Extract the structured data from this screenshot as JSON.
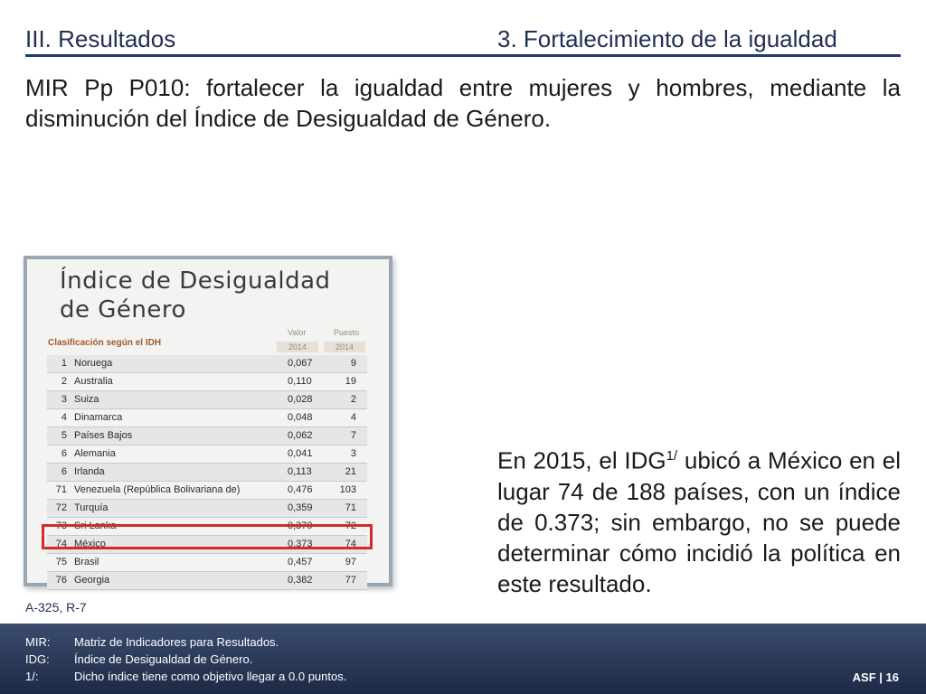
{
  "header": {
    "section": "III. Resultados",
    "topic": "3. Fortalecimiento de la igualdad"
  },
  "objective": "MIR Pp P010: fortalecer la igualdad entre mujeres y hombres, mediante la disminución del Índice de Desigualdad de Género.",
  "figure": {
    "title_line1": "Índice de Desigualdad",
    "title_line2": "de Género",
    "col_value": "Valor",
    "col_rank": "Puesto",
    "year_value": "2014",
    "year_rank": "2014",
    "classification_label": "Clasificación según el IDH",
    "rows": [
      {
        "rank": "1",
        "country": "Noruega",
        "value": "0,067",
        "position": "9"
      },
      {
        "rank": "2",
        "country": "Australia",
        "value": "0,110",
        "position": "19"
      },
      {
        "rank": "3",
        "country": "Suiza",
        "value": "0,028",
        "position": "2"
      },
      {
        "rank": "4",
        "country": "Dinamarca",
        "value": "0,048",
        "position": "4"
      },
      {
        "rank": "5",
        "country": "Países Bajos",
        "value": "0,062",
        "position": "7"
      },
      {
        "rank": "6",
        "country": "Alemania",
        "value": "0,041",
        "position": "3"
      },
      {
        "rank": "6",
        "country": "Irlanda",
        "value": "0,113",
        "position": "21"
      },
      {
        "rank": "71",
        "country": "Venezuela (República Bolivariana de)",
        "value": "0,476",
        "position": "103"
      },
      {
        "rank": "72",
        "country": "Turquía",
        "value": "0,359",
        "position": "71"
      },
      {
        "rank": "73",
        "country": "Sri Lanka",
        "value": "0,370",
        "position": "72"
      },
      {
        "rank": "74",
        "country": "México",
        "value": "0,373",
        "position": "74"
      },
      {
        "rank": "75",
        "country": "Brasil",
        "value": "0,457",
        "position": "97"
      },
      {
        "rank": "76",
        "country": "Georgia",
        "value": "0,382",
        "position": "77"
      }
    ],
    "highlight_color": "#d42a2a"
  },
  "source": "A-325, R-7",
  "note": {
    "before_sup": "En 2015, el IDG",
    "sup": "1/",
    "after_sup": " ubicó a México en el lugar 74 de 188 países, con un índice de 0.373; sin embargo, no se puede determinar cómo incidió la política en este resultado."
  },
  "footer": {
    "lines": [
      {
        "abbr": "MIR:",
        "text": "Matriz de Indicadores para Resultados."
      },
      {
        "abbr": "IDG:",
        "text": "Índice de Desigualdad de Género."
      },
      {
        "abbr": "1/:",
        "text": "Dicho índice tiene como objetivo llegar a 0.0 puntos."
      }
    ],
    "page_label": "ASF | 16"
  }
}
